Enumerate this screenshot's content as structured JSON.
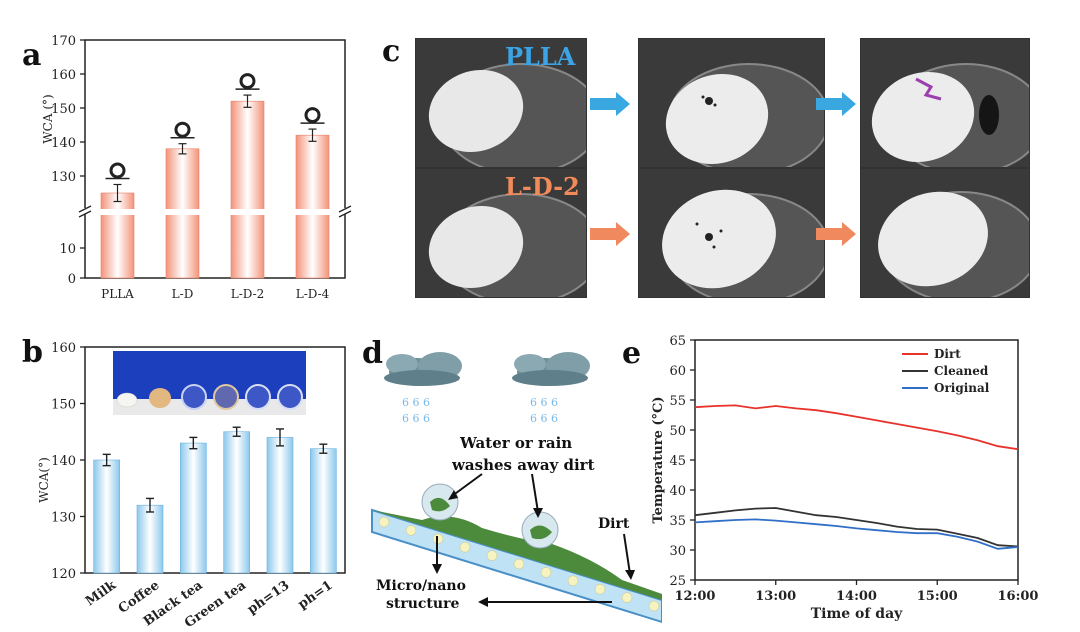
{
  "panels": {
    "a": {
      "letter": "a"
    },
    "b": {
      "letter": "b"
    },
    "c": {
      "letter": "c",
      "row1_label": "PLLA",
      "row2_label": "L-D-2"
    },
    "d": {
      "letter": "d",
      "caption_line1": "Water or rain",
      "caption_line2": "washes away dirt",
      "dirt_label": "Dirt",
      "structure_line1": "Micro/nano",
      "structure_line2": "structure"
    },
    "e": {
      "letter": "e"
    }
  },
  "chart_data": [
    {
      "id": "a",
      "type": "bar",
      "ylabel": "WCA (°)",
      "categories": [
        "PLLA",
        "L-D",
        "L-D-2",
        "L-D-4"
      ],
      "values": [
        125,
        138,
        152,
        142
      ],
      "errors": [
        2.5,
        1.5,
        1.8,
        1.8
      ],
      "y_axis_broken": true,
      "y_ticks_lower": [
        0,
        10
      ],
      "y_ticks_upper": [
        130,
        140,
        150,
        160,
        170
      ],
      "color": "#f3937a"
    },
    {
      "id": "b",
      "type": "bar",
      "ylabel": "WCA(°)",
      "categories": [
        "Milk",
        "Coffee",
        "Black tea",
        "Green tea",
        "ph=13",
        "ph=1"
      ],
      "values": [
        140,
        132,
        143,
        145,
        144,
        142
      ],
      "errors": [
        1,
        1.2,
        1,
        0.8,
        1.5,
        0.8
      ],
      "ylim": [
        120,
        160
      ],
      "y_ticks": [
        120,
        130,
        140,
        150,
        160
      ],
      "color": "#8cc8ec"
    },
    {
      "id": "e",
      "type": "line",
      "xlabel": "Time of day",
      "ylabel": "Temperature (°C)",
      "x_ticks": [
        "12:00",
        "13:00",
        "14:00",
        "15:00",
        "16:00"
      ],
      "y_ticks": [
        25,
        30,
        35,
        40,
        45,
        50,
        55,
        60,
        65
      ],
      "ylim": [
        25,
        65
      ],
      "legend_position": "top-right",
      "series": [
        {
          "name": "Dirt",
          "color": "#e8322c",
          "x": [
            0,
            0.25,
            0.5,
            0.75,
            1,
            1.25,
            1.5,
            1.75,
            2,
            2.25,
            2.5,
            2.75,
            3,
            3.25,
            3.5,
            3.75,
            4
          ],
          "values": [
            53.8,
            54,
            54.1,
            53.6,
            54,
            53.6,
            53.3,
            52.8,
            52.2,
            51.6,
            51,
            50.4,
            49.8,
            49.1,
            48.3,
            47.3,
            46.8
          ]
        },
        {
          "name": "Cleaned",
          "color": "#333333",
          "x": [
            0,
            0.25,
            0.5,
            0.75,
            1,
            1.25,
            1.5,
            1.75,
            2,
            2.25,
            2.5,
            2.75,
            3,
            3.25,
            3.5,
            3.75,
            4
          ],
          "values": [
            35.8,
            36.2,
            36.6,
            36.9,
            37,
            36.4,
            35.8,
            35.5,
            35,
            34.5,
            33.9,
            33.5,
            33.4,
            32.7,
            32,
            30.8,
            30.6
          ]
        },
        {
          "name": "Original",
          "color": "#2f6fc7",
          "x": [
            0,
            0.25,
            0.5,
            0.75,
            1,
            1.25,
            1.5,
            1.75,
            2,
            2.25,
            2.5,
            2.75,
            3,
            3.25,
            3.5,
            3.75,
            4
          ],
          "values": [
            34.6,
            34.8,
            35,
            35.1,
            34.9,
            34.6,
            34.3,
            34,
            33.6,
            33.3,
            33,
            32.8,
            32.8,
            32.2,
            31.4,
            30.2,
            30.5
          ]
        }
      ]
    }
  ]
}
